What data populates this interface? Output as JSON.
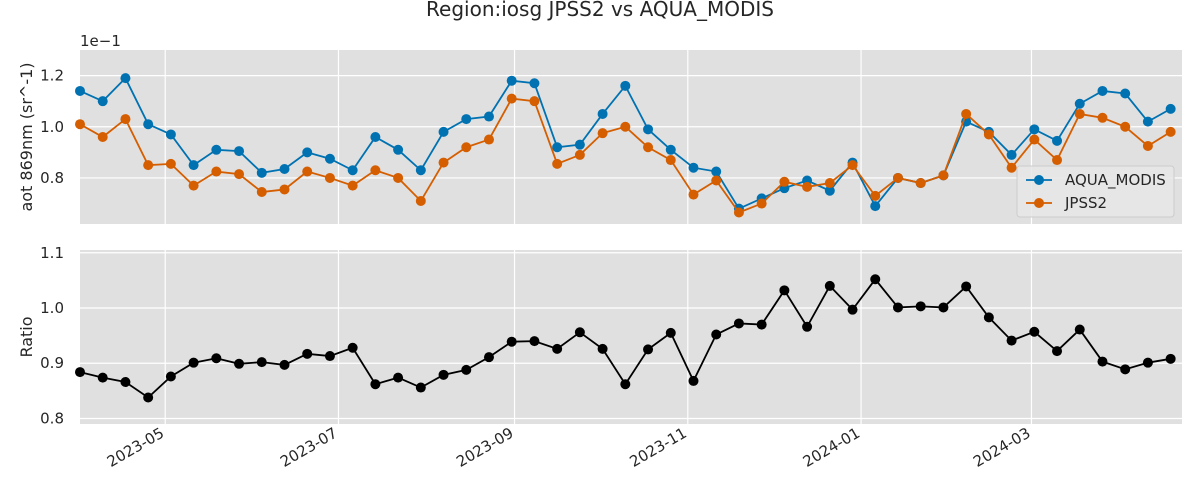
{
  "figure": {
    "title": "Region:iosg JPSS2 vs AQUA_MODIS"
  },
  "chart_data": [
    {
      "type": "line",
      "ylabel": "aot 869nm (sr^-1)",
      "offset_text": "1e−1",
      "ylim": [
        0.62,
        1.3
      ],
      "yticks": [
        0.8,
        1.0,
        1.2
      ],
      "ytick_labels": [
        "0.8",
        "1.0",
        "1.2"
      ],
      "grid": true,
      "legend_position": "right",
      "x": [
        "2023-04-01",
        "2023-04-09",
        "2023-04-17",
        "2023-04-25",
        "2023-05-03",
        "2023-05-11",
        "2023-05-19",
        "2023-05-27",
        "2023-06-04",
        "2023-06-12",
        "2023-06-20",
        "2023-06-28",
        "2023-07-06",
        "2023-07-14",
        "2023-07-22",
        "2023-07-30",
        "2023-08-07",
        "2023-08-15",
        "2023-08-23",
        "2023-08-31",
        "2023-09-08",
        "2023-09-16",
        "2023-09-24",
        "2023-10-02",
        "2023-10-10",
        "2023-10-18",
        "2023-10-26",
        "2023-11-03",
        "2023-11-11",
        "2023-11-19",
        "2023-11-27",
        "2023-12-05",
        "2023-12-13",
        "2023-12-21",
        "2023-12-29",
        "2024-01-06",
        "2024-01-14",
        "2024-01-22",
        "2024-01-30",
        "2024-02-07",
        "2024-02-15",
        "2024-02-23",
        "2024-03-02",
        "2024-03-10",
        "2024-03-18",
        "2024-03-26",
        "2024-04-03",
        "2024-04-11",
        "2024-04-19"
      ],
      "series": [
        {
          "name": "AQUA_MODIS",
          "color": "#0072b2",
          "values": [
            1.14,
            1.1,
            1.19,
            1.01,
            0.97,
            0.85,
            0.91,
            0.905,
            0.82,
            0.835,
            0.9,
            0.875,
            0.83,
            0.96,
            0.91,
            0.83,
            0.98,
            1.03,
            1.04,
            1.18,
            1.17,
            0.92,
            0.93,
            1.05,
            1.16,
            0.99,
            0.91,
            0.84,
            0.825,
            0.68,
            0.72,
            0.76,
            0.79,
            0.75,
            0.86,
            0.69,
            0.8,
            0.78,
            0.81,
            1.02,
            0.98,
            0.89,
            0.99,
            0.945,
            1.09,
            1.14,
            1.13,
            1.02,
            1.07
          ]
        },
        {
          "name": "JPSS2",
          "color": "#d55e00",
          "values": [
            1.01,
            0.96,
            1.03,
            0.85,
            0.855,
            0.77,
            0.825,
            0.815,
            0.745,
            0.755,
            0.825,
            0.8,
            0.77,
            0.83,
            0.8,
            0.71,
            0.86,
            0.92,
            0.95,
            1.11,
            1.1,
            0.855,
            0.89,
            0.975,
            1.0,
            0.92,
            0.87,
            0.735,
            0.79,
            0.665,
            0.7,
            0.785,
            0.765,
            0.78,
            0.85,
            0.73,
            0.8,
            0.78,
            0.81,
            1.05,
            0.97,
            0.84,
            0.95,
            0.87,
            1.05,
            1.035,
            1.0,
            0.925,
            0.98
          ]
        }
      ]
    },
    {
      "type": "line",
      "ylabel": "Ratio",
      "ylim": [
        0.79,
        1.105
      ],
      "yticks": [
        0.8,
        0.9,
        1.0,
        1.1
      ],
      "ytick_labels": [
        "0.8",
        "0.9",
        "1.0",
        "1.1"
      ],
      "xlim": [
        "2023-04-01",
        "2024-04-23"
      ],
      "xticks": [
        "2023-05-01",
        "2023-07-01",
        "2023-09-01",
        "2023-11-01",
        "2024-01-01",
        "2024-03-01"
      ],
      "xtick_labels": [
        "2023-05",
        "2023-07",
        "2023-09",
        "2023-11",
        "2024-01",
        "2024-03"
      ],
      "grid": true,
      "series": [
        {
          "color": "#000000",
          "values": [
            0.884,
            0.874,
            0.866,
            0.838,
            0.876,
            0.901,
            0.909,
            0.899,
            0.902,
            0.897,
            0.917,
            0.913,
            0.928,
            0.862,
            0.874,
            0.856,
            0.879,
            0.888,
            0.911,
            0.939,
            0.94,
            0.926,
            0.956,
            0.926,
            0.862,
            0.925,
            0.955,
            0.868,
            0.952,
            0.972,
            0.97,
            1.032,
            0.966,
            1.04,
            0.997,
            1.052,
            1.001,
            1.003,
            1.001,
            1.039,
            0.983,
            0.941,
            0.957,
            0.922,
            0.961,
            0.903,
            0.889,
            0.901,
            0.908
          ]
        }
      ]
    }
  ]
}
